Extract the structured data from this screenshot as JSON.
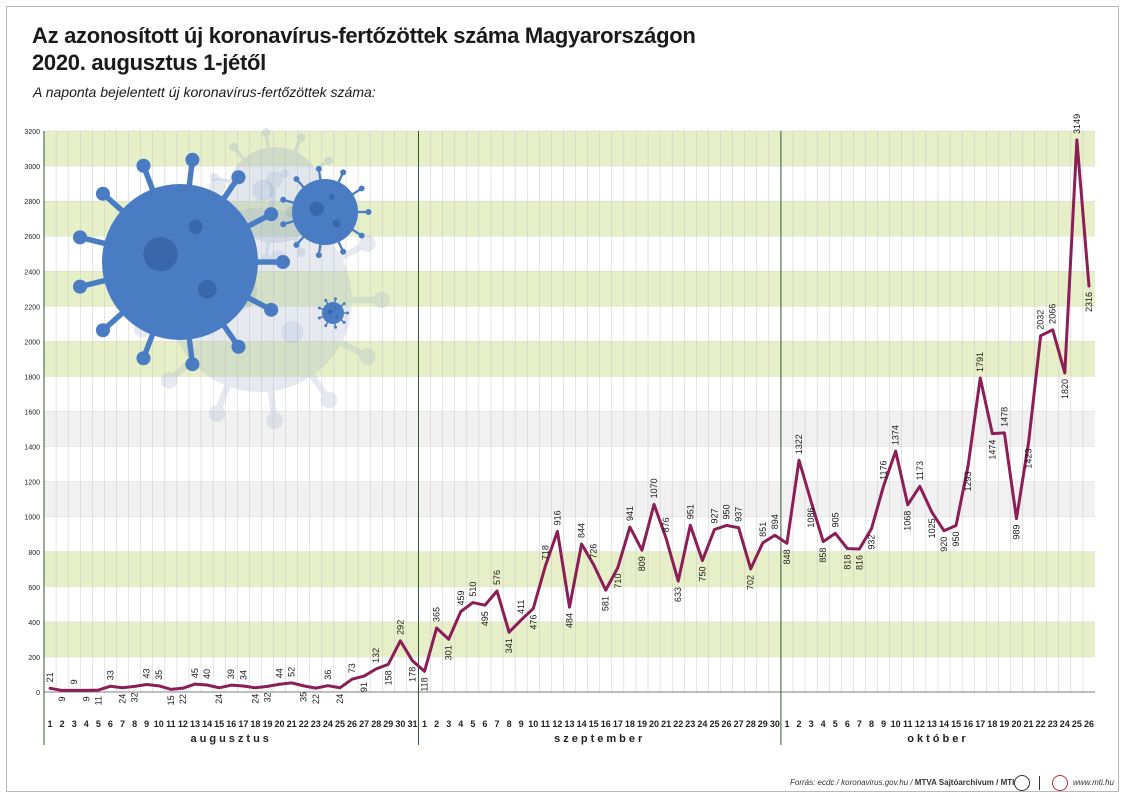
{
  "title_line1": "Az azonosított új koronavírus-fertőzöttek száma Magyarországon",
  "title_line2": "2020. augusztus 1-jétől",
  "subtitle": "A naponta bejelentett új koronavírus-fertőzöttek száma:",
  "footer": {
    "source": "Forrás: ecdc / koronavirus.gov.hu / ",
    "archive": "MTVA Sajtóarchívum / MTI",
    "site": "www.mti.hu"
  },
  "colors": {
    "line": "#8b1e57",
    "band_green": "#e6efc7",
    "band_grey": "#f1f1f1",
    "virus": "#4a7cc4"
  },
  "chart_data": {
    "type": "line",
    "ylim": [
      0,
      3200
    ],
    "y_ticks": [
      0,
      200,
      400,
      600,
      800,
      1000,
      1200,
      1400,
      1600,
      1800,
      2000,
      2200,
      2400,
      2600,
      2800,
      3000,
      3200
    ],
    "months": [
      {
        "name": "augusztus",
        "days": 31
      },
      {
        "name": "szeptember",
        "days": 30
      },
      {
        "name": "október",
        "days": 26
      }
    ],
    "x_tick_labels": [
      "1",
      "2",
      "3",
      "4",
      "5",
      "6",
      "7",
      "8",
      "9",
      "10",
      "11",
      "12",
      "13",
      "14",
      "15",
      "16",
      "17",
      "18",
      "19",
      "20",
      "21",
      "22",
      "23",
      "24",
      "25",
      "26",
      "27",
      "28",
      "29",
      "30",
      "31",
      "1",
      "2",
      "3",
      "4",
      "5",
      "6",
      "7",
      "8",
      "9",
      "10",
      "11",
      "12",
      "13",
      "14",
      "15",
      "16",
      "17",
      "18",
      "19",
      "20",
      "21",
      "22",
      "23",
      "24",
      "25",
      "26",
      "27",
      "28",
      "29",
      "30",
      "1",
      "2",
      "3",
      "4",
      "5",
      "6",
      "7",
      "8",
      "9",
      "10",
      "11",
      "12",
      "13",
      "14",
      "15",
      "16",
      "17",
      "18",
      "19",
      "20",
      "21",
      "22",
      "23",
      "24",
      "25",
      "26"
    ],
    "values": [
      21,
      9,
      9,
      9,
      11,
      33,
      24,
      32,
      43,
      35,
      15,
      22,
      45,
      40,
      24,
      39,
      34,
      24,
      32,
      44,
      52,
      35,
      22,
      36,
      24,
      73,
      91,
      132,
      158,
      292,
      178,
      118,
      365,
      301,
      459,
      510,
      495,
      576,
      341,
      411,
      476,
      718,
      916,
      484,
      844,
      726,
      581,
      710,
      941,
      809,
      1070,
      876,
      633,
      951,
      750,
      927,
      950,
      937,
      702,
      851,
      894,
      848,
      1322,
      1086,
      858,
      905,
      818,
      816,
      932,
      1176,
      1374,
      1068,
      1173,
      1025,
      920,
      950,
      1293,
      1791,
      1474,
      1478,
      989,
      1423,
      2032,
      2066,
      1820,
      3149,
      2316
    ],
    "data_labels": [
      "21",
      "9",
      "9",
      "9",
      "11",
      "33",
      "24",
      "32",
      "43",
      "35",
      "15",
      "22",
      "45",
      "40",
      "24",
      "39",
      "34",
      "24",
      "32",
      "44",
      "52",
      "35",
      "22",
      "36",
      "24",
      "73",
      "91",
      "132",
      "158",
      "292",
      "178",
      "118",
      "365",
      "301",
      "459",
      "510",
      "495",
      "576",
      "341",
      "411",
      "476",
      "718",
      "916",
      "484",
      "844",
      "726",
      "581",
      "710",
      "941",
      "809",
      "1070",
      "876",
      "633",
      "951",
      "750",
      "927",
      "950",
      "937",
      "702",
      "851",
      "894",
      "848",
      "1322",
      "1086",
      "858",
      "905",
      "818",
      "816",
      "932",
      "1176",
      "1374",
      "1068",
      "1173",
      "1025",
      "920",
      "950",
      "1293",
      "1791",
      "1474",
      "1478",
      "989",
      "1423",
      "2032",
      "2066",
      "1820",
      "3149",
      "2316"
    ],
    "grid": true
  }
}
